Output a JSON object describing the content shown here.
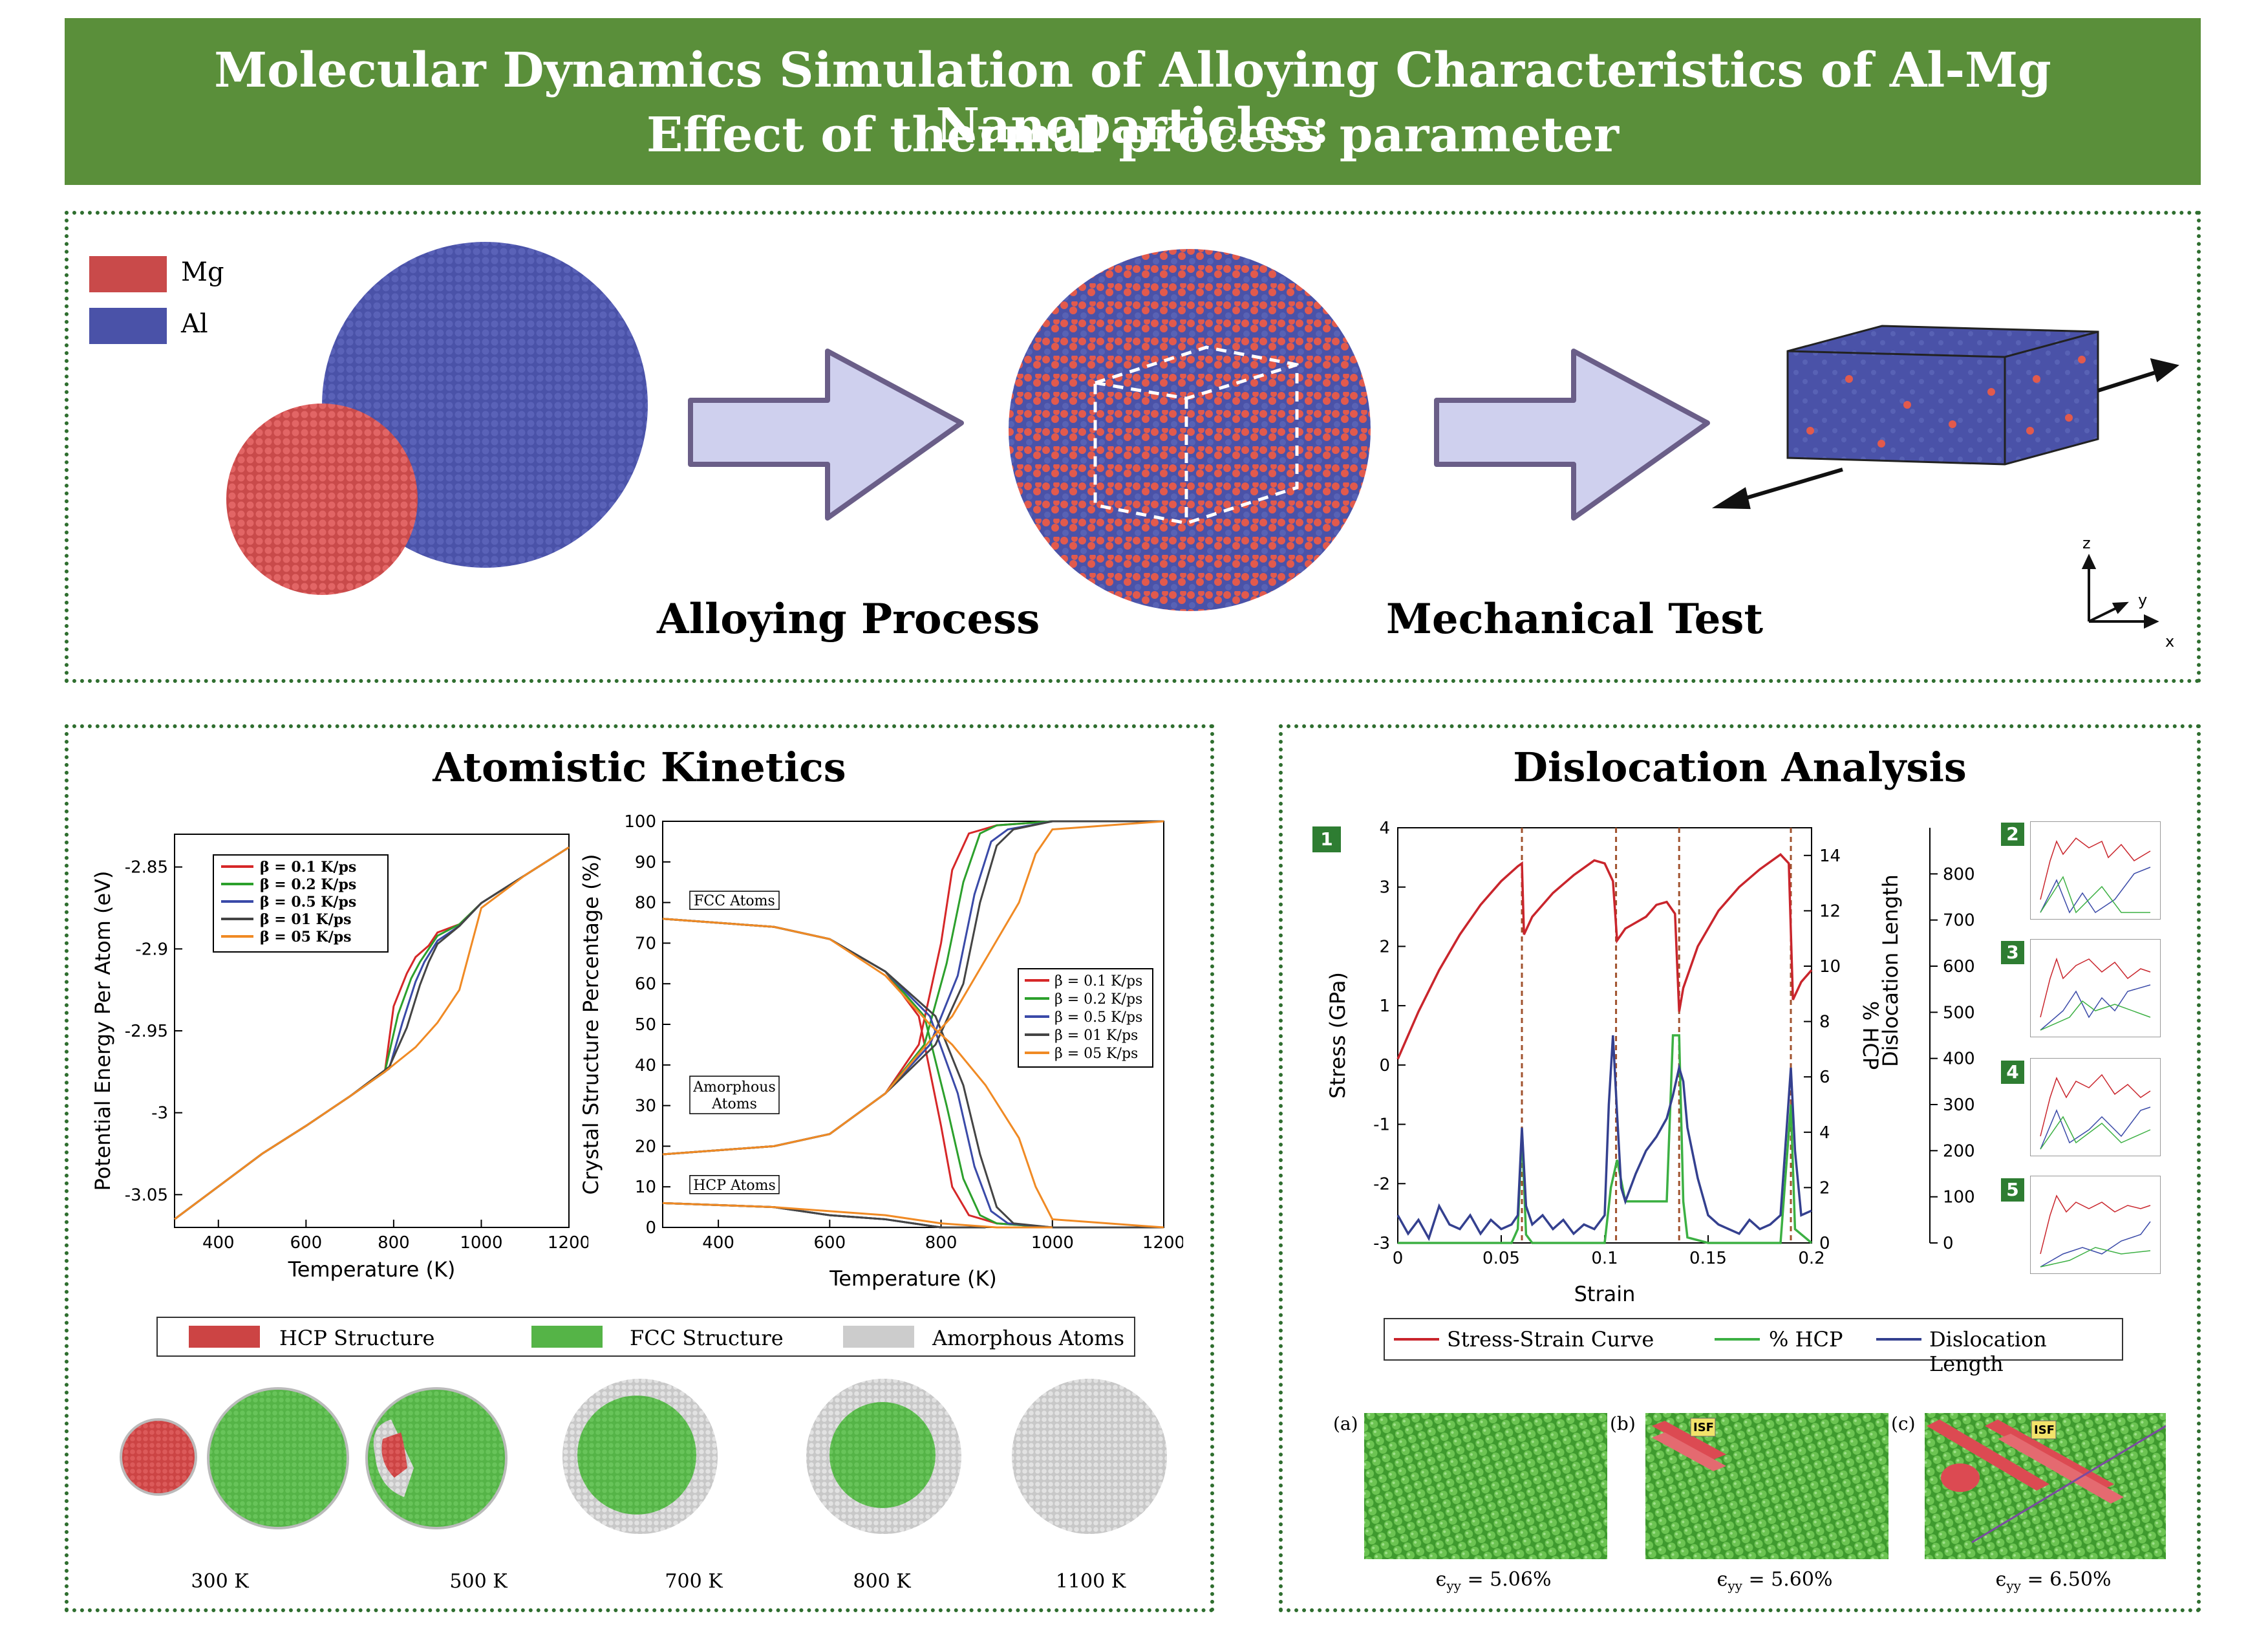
{
  "title": {
    "line1": "Molecular Dynamics Simulation of Alloying Characteristics of Al-Mg Nanoparticles:",
    "line2": "Effect of thermal process parameter"
  },
  "colors": {
    "mg": "#c94a4a",
    "al": "#4a52a8",
    "hcp": "#cc4444",
    "fcc": "#55b447",
    "amorphous": "#cccccc",
    "banner": "#5a8f3a",
    "arrow_fill": "#cfd0ee",
    "arrow_stroke": "#6a5e88"
  },
  "top_panel": {
    "legend": [
      {
        "label": "Mg"
      },
      {
        "label": "Al"
      }
    ],
    "alloying_label": "Alloying Process",
    "mechanical_label": "Mechanical Test",
    "axes": {
      "z": "z",
      "y": "y",
      "x": "x"
    }
  },
  "kinetics": {
    "title": "Atomistic Kinetics",
    "structure_legend": [
      "HCP Structure",
      "FCC Structure",
      "Amorphous Atoms"
    ],
    "snapshots": [
      "300 K",
      "500 K",
      "700 K",
      "800 K",
      "1100 K"
    ]
  },
  "dislocation": {
    "title": "Dislocation Analysis",
    "badges": [
      "1",
      "2",
      "3",
      "4",
      "5"
    ],
    "bottom_legend": [
      "Stress-Strain Curve",
      "% HCP",
      "Dislocation Length"
    ],
    "panel_labels": [
      "(a)",
      "(b)",
      "(c)"
    ],
    "isf": "ISF",
    "strain_captions": [
      "= 5.06%",
      "= 5.60%",
      "= 6.50%"
    ],
    "eps": "ϵ",
    "eps_sub": "yy"
  },
  "chart_data": [
    {
      "type": "line",
      "xlabel": "Temperature (K)",
      "ylabel": "Potential Energy Per Atom (eV)",
      "xlim": [
        300,
        1200
      ],
      "ylim": [
        -3.07,
        -2.83
      ],
      "xticks": [
        "400",
        "600",
        "800",
        "1000",
        "1200"
      ],
      "yticks": [
        "-3.05",
        "-3",
        "-2.95",
        "-2.9",
        "-2.85"
      ],
      "series": [
        {
          "name": "β = 0.1 K/ps",
          "color": "#d62728",
          "x": [
            300,
            400,
            500,
            600,
            700,
            780,
            800,
            830,
            850,
            880,
            900,
            950,
            1000,
            1100,
            1200
          ],
          "y": [
            -3.065,
            -3.045,
            -3.025,
            -3.008,
            -2.99,
            -2.975,
            -2.935,
            -2.915,
            -2.905,
            -2.898,
            -2.89,
            -2.885,
            -2.872,
            -2.855,
            -2.838
          ]
        },
        {
          "name": "β = 0.2 K/ps",
          "color": "#2ca02c",
          "x": [
            300,
            400,
            500,
            600,
            700,
            780,
            810,
            840,
            860,
            880,
            900,
            950,
            1000,
            1100,
            1200
          ],
          "y": [
            -3.065,
            -3.045,
            -3.025,
            -3.008,
            -2.99,
            -2.975,
            -2.94,
            -2.918,
            -2.908,
            -2.9,
            -2.892,
            -2.885,
            -2.872,
            -2.855,
            -2.838
          ]
        },
        {
          "name": "β = 0.5 K/ps",
          "color": "#3a4aa8",
          "x": [
            300,
            400,
            500,
            600,
            700,
            790,
            820,
            850,
            870,
            900,
            950,
            1000,
            1100,
            1200
          ],
          "y": [
            -3.065,
            -3.045,
            -3.025,
            -3.008,
            -2.99,
            -2.973,
            -2.945,
            -2.92,
            -2.908,
            -2.895,
            -2.886,
            -2.872,
            -2.855,
            -2.838
          ]
        },
        {
          "name": "β = 01 K/ps",
          "color": "#444444",
          "x": [
            300,
            400,
            500,
            600,
            700,
            790,
            830,
            860,
            880,
            900,
            950,
            1000,
            1100,
            1200
          ],
          "y": [
            -3.065,
            -3.045,
            -3.025,
            -3.008,
            -2.99,
            -2.972,
            -2.948,
            -2.922,
            -2.908,
            -2.897,
            -2.886,
            -2.872,
            -2.855,
            -2.838
          ]
        },
        {
          "name": "β = 05 K/ps",
          "color": "#f08a24",
          "x": [
            300,
            400,
            500,
            600,
            700,
            780,
            850,
            900,
            950,
            970,
            990,
            1000,
            1050,
            1100,
            1200
          ],
          "y": [
            -3.065,
            -3.045,
            -3.025,
            -3.008,
            -2.99,
            -2.975,
            -2.96,
            -2.945,
            -2.925,
            -2.905,
            -2.885,
            -2.875,
            -2.865,
            -2.855,
            -2.838
          ]
        }
      ]
    },
    {
      "type": "line",
      "xlabel": "Temperature (K)",
      "ylabel": "Crystal Structure Percentage (%)",
      "xlim": [
        300,
        1200
      ],
      "ylim": [
        0,
        100
      ],
      "xticks": [
        "400",
        "600",
        "800",
        "1000",
        "1200"
      ],
      "yticks": [
        "0",
        "10",
        "20",
        "30",
        "40",
        "50",
        "60",
        "70",
        "80",
        "90",
        "100"
      ],
      "annotations": [
        "FCC Atoms",
        "Amorphous Atoms",
        "HCP Atoms"
      ],
      "series": [
        {
          "name": "β = 0.1 K/ps",
          "color": "#d62728",
          "groups": [
            {
              "x": [
                300,
                500,
                600,
                700,
                760,
                800,
                820,
                850,
                900,
                1000,
                1200
              ],
              "y": [
                76,
                74,
                71,
                63,
                52,
                25,
                10,
                3,
                1,
                0,
                0
              ]
            },
            {
              "x": [
                300,
                500,
                600,
                700,
                760,
                800,
                820,
                850,
                900,
                1000,
                1200
              ],
              "y": [
                18,
                20,
                23,
                33,
                45,
                70,
                88,
                97,
                99,
                100,
                100
              ]
            },
            {
              "x": [
                300,
                500,
                600,
                700,
                800,
                850
              ],
              "y": [
                6,
                5,
                3,
                2,
                0,
                0
              ]
            }
          ]
        },
        {
          "name": "β = 0.2 K/ps",
          "color": "#2ca02c",
          "groups": [
            {
              "x": [
                300,
                500,
                600,
                700,
                770,
                810,
                840,
                870,
                900,
                1000,
                1200
              ],
              "y": [
                76,
                74,
                71,
                63,
                52,
                30,
                12,
                3,
                1,
                0,
                0
              ]
            },
            {
              "x": [
                300,
                500,
                600,
                700,
                770,
                810,
                840,
                870,
                900,
                1000,
                1200
              ],
              "y": [
                18,
                20,
                23,
                33,
                45,
                65,
                85,
                97,
                99,
                100,
                100
              ]
            },
            {
              "x": [
                300,
                500,
                600,
                700,
                800,
                860
              ],
              "y": [
                6,
                5,
                3,
                2,
                0,
                0
              ]
            }
          ]
        },
        {
          "name": "β = 0.5 K/ps",
          "color": "#3a4aa8",
          "groups": [
            {
              "x": [
                300,
                500,
                600,
                700,
                780,
                830,
                860,
                890,
                920,
                1000,
                1200
              ],
              "y": [
                76,
                74,
                71,
                63,
                52,
                33,
                15,
                4,
                1,
                0,
                0
              ]
            },
            {
              "x": [
                300,
                500,
                600,
                700,
                780,
                830,
                860,
                890,
                920,
                1000,
                1200
              ],
              "y": [
                18,
                20,
                23,
                33,
                45,
                62,
                82,
                95,
                98,
                100,
                100
              ]
            },
            {
              "x": [
                300,
                500,
                600,
                700,
                800,
                870
              ],
              "y": [
                6,
                5,
                3,
                2,
                0,
                0
              ]
            }
          ]
        },
        {
          "name": "β = 01 K/ps",
          "color": "#444444",
          "groups": [
            {
              "x": [
                300,
                500,
                600,
                700,
                790,
                840,
                870,
                900,
                930,
                1000,
                1200
              ],
              "y": [
                76,
                74,
                71,
                63,
                52,
                35,
                18,
                5,
                1,
                0,
                0
              ]
            },
            {
              "x": [
                300,
                500,
                600,
                700,
                790,
                840,
                870,
                900,
                930,
                1000,
                1200
              ],
              "y": [
                18,
                20,
                23,
                33,
                45,
                60,
                80,
                94,
                98,
                100,
                100
              ]
            },
            {
              "x": [
                300,
                500,
                600,
                700,
                800,
                880
              ],
              "y": [
                6,
                5,
                3,
                2,
                0,
                0
              ]
            }
          ]
        },
        {
          "name": "β = 05 K/ps",
          "color": "#f08a24",
          "groups": [
            {
              "x": [
                300,
                500,
                600,
                700,
                780,
                820,
                880,
                940,
                970,
                1000,
                1200
              ],
              "y": [
                76,
                74,
                71,
                62,
                50,
                45,
                35,
                22,
                10,
                2,
                0
              ]
            },
            {
              "x": [
                300,
                500,
                600,
                700,
                780,
                820,
                880,
                940,
                970,
                1000,
                1200
              ],
              "y": [
                18,
                20,
                23,
                33,
                46,
                52,
                66,
                80,
                92,
                98,
                100
              ]
            },
            {
              "x": [
                300,
                500,
                600,
                700,
                800,
                900,
                1000
              ],
              "y": [
                6,
                5,
                4,
                3,
                1,
                0,
                0
              ]
            }
          ]
        }
      ]
    },
    {
      "type": "line",
      "xlabel": "Strain",
      "ylabel": "Stress (GPa)",
      "y2label": "% HCP",
      "y3label": "Dislocation Length",
      "xlim": [
        0,
        0.2
      ],
      "ylim": [
        -3,
        4
      ],
      "y2lim": [
        0,
        15
      ],
      "y3lim": [
        0,
        900
      ],
      "xticks": [
        "0",
        "0.05",
        "0.1",
        "0.15",
        "0.2"
      ],
      "yticks": [
        "-3",
        "-2",
        "-1",
        "0",
        "1",
        "2",
        "3",
        "4"
      ],
      "y2ticks": [
        "0",
        "2",
        "4",
        "6",
        "8",
        "10",
        "12",
        "14"
      ],
      "y3ticks": [
        "0",
        "100",
        "200",
        "300",
        "400",
        "500",
        "600",
        "700",
        "800"
      ],
      "dashed_x": [
        0.06,
        0.1055,
        0.136,
        0.19
      ],
      "series": [
        {
          "name": "Stress-Strain Curve",
          "color": "#c9252c",
          "x": [
            0,
            0.01,
            0.02,
            0.03,
            0.04,
            0.05,
            0.058,
            0.06,
            0.061,
            0.065,
            0.075,
            0.085,
            0.095,
            0.1,
            0.104,
            0.106,
            0.11,
            0.115,
            0.12,
            0.125,
            0.13,
            0.134,
            0.136,
            0.138,
            0.145,
            0.155,
            0.165,
            0.175,
            0.185,
            0.189,
            0.191,
            0.195,
            0.2
          ],
          "y": [
            0.1,
            0.9,
            1.6,
            2.2,
            2.7,
            3.1,
            3.35,
            3.4,
            2.2,
            2.5,
            2.9,
            3.2,
            3.45,
            3.4,
            3.1,
            2.1,
            2.3,
            2.4,
            2.5,
            2.7,
            2.75,
            2.55,
            0.9,
            1.3,
            2.0,
            2.6,
            3.0,
            3.3,
            3.55,
            3.4,
            1.1,
            1.4,
            1.6
          ]
        },
        {
          "name": "% HCP",
          "color": "#3cb043",
          "axis": "y2",
          "x": [
            0,
            0.055,
            0.058,
            0.06,
            0.062,
            0.065,
            0.1,
            0.103,
            0.106,
            0.11,
            0.12,
            0.13,
            0.133,
            0.136,
            0.138,
            0.14,
            0.15,
            0.185,
            0.188,
            0.19,
            0.192,
            0.2
          ],
          "y": [
            0,
            0,
            0.5,
            4,
            0.3,
            0,
            0,
            2,
            3,
            1.5,
            1.5,
            1.5,
            7.5,
            7.5,
            1.5,
            0.2,
            0,
            0,
            3,
            5,
            0.5,
            0
          ]
        },
        {
          "name": "Dislocation Length",
          "color": "#34408f",
          "axis": "y3",
          "x": [
            0,
            0.005,
            0.01,
            0.015,
            0.02,
            0.025,
            0.03,
            0.035,
            0.04,
            0.045,
            0.05,
            0.055,
            0.058,
            0.06,
            0.062,
            0.065,
            0.07,
            0.075,
            0.08,
            0.085,
            0.09,
            0.095,
            0.1,
            0.102,
            0.104,
            0.106,
            0.108,
            0.11,
            0.115,
            0.12,
            0.125,
            0.13,
            0.133,
            0.136,
            0.138,
            0.14,
            0.145,
            0.15,
            0.155,
            0.16,
            0.165,
            0.17,
            0.175,
            0.18,
            0.185,
            0.188,
            0.19,
            0.192,
            0.195,
            0.2
          ],
          "y": [
            60,
            20,
            50,
            10,
            80,
            40,
            30,
            60,
            20,
            50,
            30,
            40,
            60,
            250,
            80,
            40,
            60,
            30,
            50,
            20,
            40,
            30,
            60,
            300,
            450,
            280,
            120,
            90,
            150,
            200,
            230,
            270,
            320,
            380,
            350,
            250,
            140,
            60,
            40,
            30,
            20,
            50,
            30,
            40,
            60,
            250,
            380,
            200,
            60,
            70
          ]
        }
      ]
    }
  ]
}
